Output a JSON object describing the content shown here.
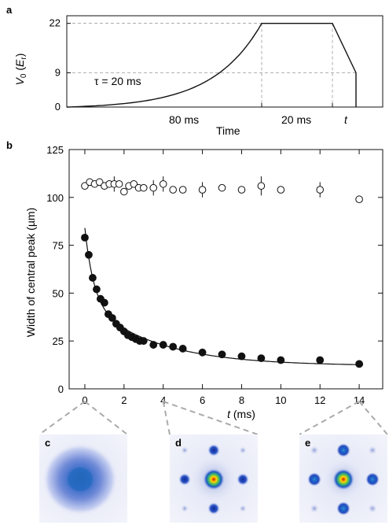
{
  "panels": {
    "a": "a",
    "b": "b",
    "c": "c",
    "d": "d",
    "e": "e"
  },
  "chart_data": [
    {
      "id": "a",
      "type": "line",
      "ylabel_main": "V",
      "ylabel_sub": "0",
      "ylabel_open": " (",
      "ylabel_unit": "E",
      "ylabel_unit_sub": "r",
      "ylabel_close": ")",
      "yticks": [
        "0",
        "9",
        "22"
      ],
      "ytick_values": [
        0,
        9,
        22
      ],
      "xlabel": "Time",
      "segment_labels": [
        "80 ms",
        "20 ms",
        "t"
      ],
      "annotation": "τ = 20 ms",
      "ylim": [
        0,
        24
      ],
      "x_segments_ms": [
        80,
        20,
        8
      ],
      "ramp": {
        "tau_ms": 20,
        "duration_ms": 80,
        "from": 0,
        "to": 22
      },
      "hold": {
        "duration_ms": 20,
        "value": 22
      },
      "final_value": 9
    },
    {
      "id": "b",
      "type": "scatter",
      "xlabel_var": "t",
      "xlabel_unit": " (ms)",
      "ylabel": "Width of central peak (µm)",
      "xlim": [
        -0.8,
        15.2
      ],
      "ylim": [
        0,
        125
      ],
      "xticks": [
        "0",
        "2",
        "4",
        "6",
        "8",
        "10",
        "12",
        "14"
      ],
      "xtick_values": [
        0,
        2,
        4,
        6,
        8,
        10,
        12,
        14
      ],
      "yticks": [
        "0",
        "25",
        "50",
        "75",
        "100",
        "125"
      ],
      "ytick_values": [
        0,
        25,
        50,
        75,
        100,
        125
      ],
      "series": [
        {
          "marker": "open-circle",
          "x": [
            0,
            0.25,
            0.5,
            0.75,
            1.0,
            1.25,
            1.5,
            1.75,
            2.0,
            2.25,
            2.5,
            2.75,
            3.0,
            3.5,
            4.0,
            4.5,
            5.0,
            6.0,
            7.0,
            8.0,
            9.0,
            10.0,
            12.0,
            14.0
          ],
          "y": [
            106,
            108,
            107,
            108,
            106,
            107,
            107,
            107,
            103,
            106,
            107,
            105,
            105,
            105,
            107,
            104,
            104,
            104,
            105,
            104,
            106,
            104,
            104,
            99
          ],
          "err": [
            0,
            0,
            0,
            0,
            0,
            0,
            4,
            0,
            0,
            0,
            0,
            0,
            0,
            4,
            4,
            0,
            0,
            4,
            0,
            0,
            5,
            0,
            4,
            0
          ]
        },
        {
          "marker": "filled-circle",
          "x": [
            0,
            0.2,
            0.4,
            0.6,
            0.8,
            1.0,
            1.2,
            1.4,
            1.6,
            1.8,
            2.0,
            2.2,
            2.4,
            2.6,
            2.8,
            3.0,
            3.5,
            4.0,
            4.5,
            5.0,
            6.0,
            7.0,
            8.0,
            9.0,
            10.0,
            12.0,
            14.0
          ],
          "y": [
            79,
            70,
            58,
            52,
            47,
            45,
            39,
            37,
            34,
            32,
            30,
            28,
            27,
            26,
            25,
            25,
            23,
            23,
            22,
            21,
            19,
            18,
            17,
            16,
            15,
            15,
            13
          ],
          "fit": {
            "form": "a*exp(-t/tau)+b*exp(-t/tau2)+c",
            "a": 38,
            "tau": 0.45,
            "b": 34,
            "tau2": 3.5,
            "c": 12
          }
        }
      ]
    }
  ],
  "images": [
    {
      "label": "c",
      "kind": "diffuse"
    },
    {
      "label": "d",
      "kind": "lattice-weak"
    },
    {
      "label": "e",
      "kind": "lattice-strong"
    }
  ]
}
